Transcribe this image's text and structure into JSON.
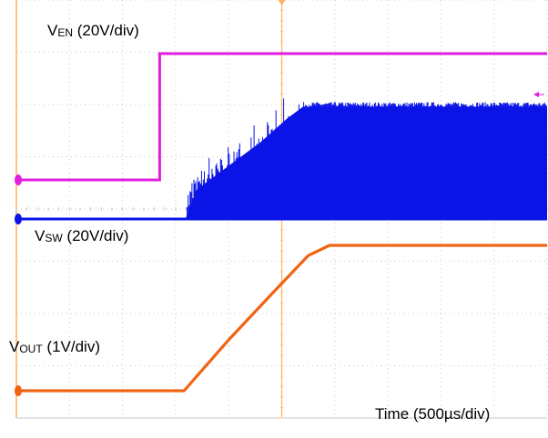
{
  "chart_data": {
    "type": "line",
    "title": "",
    "xlabel": "Time (500µs/div)",
    "x_unit": "µs",
    "xlim": [
      0,
      5000
    ],
    "grid": true,
    "divisions": {
      "x": 10,
      "y": 8
    },
    "series": [
      {
        "name": "VEN (20V/div)",
        "label_main": "V",
        "label_sub": "EN",
        "label_rest": " (20V/div)",
        "color": "#e01ee0",
        "points": [
          [
            0,
            0
          ],
          [
            1350,
            0
          ],
          [
            1350,
            1
          ],
          [
            5000,
            1
          ]
        ]
      },
      {
        "name": "VSW (20V/div)",
        "label_main": "V",
        "label_sub": "SW",
        "label_rest": " (20V/div)",
        "color": "#0a14e6",
        "baseline_points": [
          [
            0,
            0
          ],
          [
            5000,
            0
          ]
        ],
        "envelope_points": [
          [
            1600,
            0.02
          ],
          [
            1700,
            0.25
          ],
          [
            2000,
            0.45
          ],
          [
            2300,
            0.65
          ],
          [
            2550,
            0.85
          ],
          [
            2700,
            0.95
          ],
          [
            5000,
            0.95
          ]
        ]
      },
      {
        "name": "VOUT (1V/div)",
        "label_main": "V",
        "label_sub": "OUT",
        "label_rest": " (1V/div)",
        "color": "#f06414",
        "points": [
          [
            0,
            0
          ],
          [
            1580,
            0
          ],
          [
            2000,
            0.35
          ],
          [
            2450,
            0.7
          ],
          [
            2750,
            0.93
          ],
          [
            2950,
            1
          ],
          [
            5000,
            1
          ]
        ]
      }
    ]
  }
}
